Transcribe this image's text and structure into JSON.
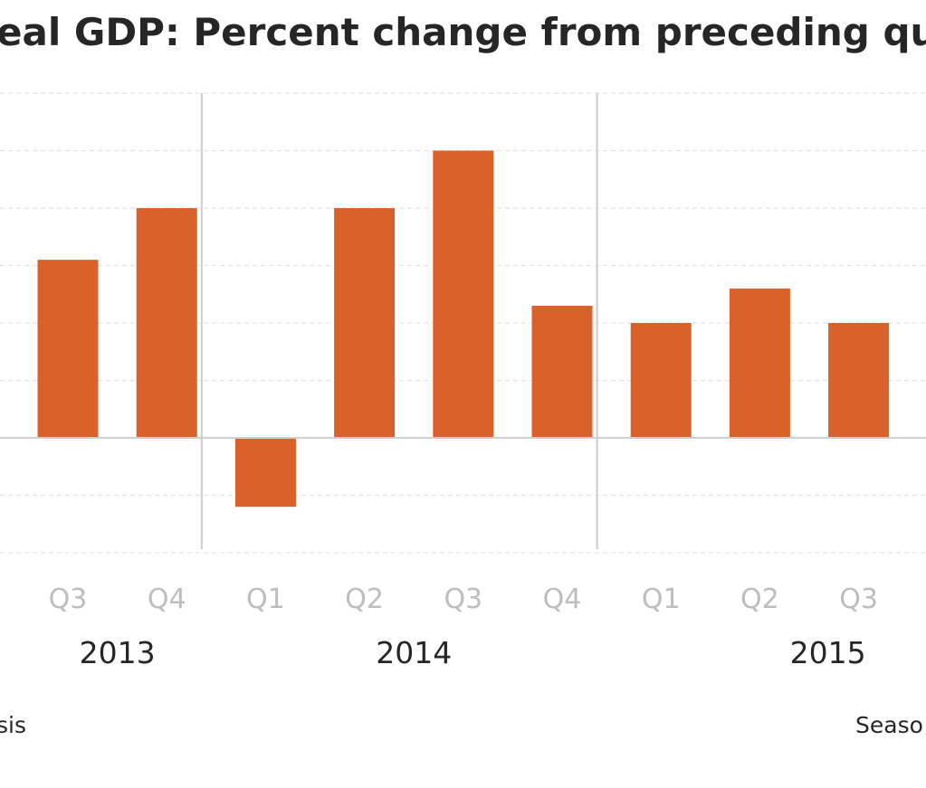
{
  "chart_data": {
    "type": "bar",
    "title": "eal GDP:  Percent change from preceding quar",
    "categories": [
      "Q3",
      "Q4",
      "Q1",
      "Q2",
      "Q3",
      "Q4",
      "Q1",
      "Q2",
      "Q3"
    ],
    "years": [
      {
        "label": "2013",
        "span": [
          0,
          1
        ]
      },
      {
        "label": "2014",
        "span": [
          2,
          5
        ]
      },
      {
        "label": "2015",
        "span": [
          6,
          8
        ]
      }
    ],
    "series": [
      {
        "name": "Real GDP percent change",
        "color": "#d9622b",
        "values": [
          3.1,
          4.0,
          -1.2,
          4.0,
          5.0,
          2.3,
          2.0,
          2.6,
          2.0
        ]
      }
    ],
    "ylim": [
      -2.0,
      6.0
    ],
    "grid_step": 1,
    "grid": true,
    "xlabel": "",
    "ylabel": "",
    "footnote_left": "sis",
    "footnote_right": "Seaso"
  }
}
